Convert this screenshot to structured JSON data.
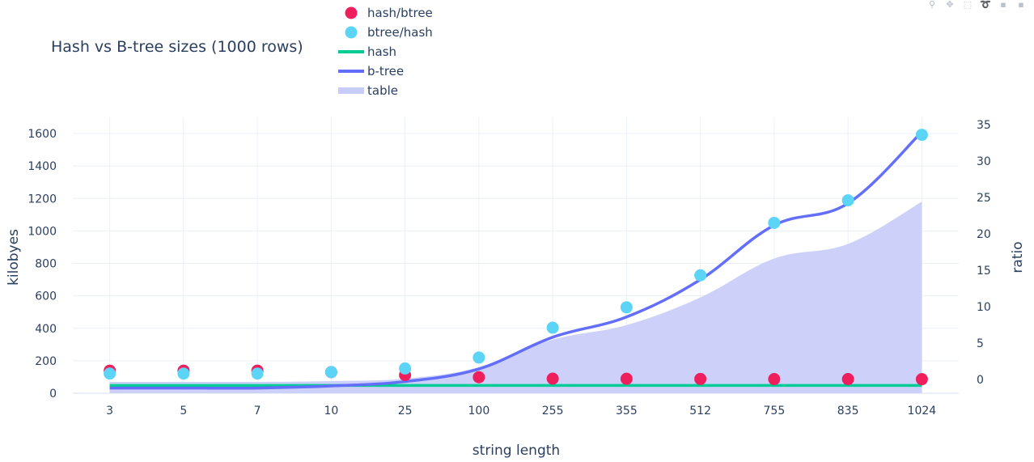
{
  "modebar": [
    {
      "name": "zoom-icon",
      "glyph": "⚲"
    },
    {
      "name": "pan-icon",
      "glyph": "✥"
    },
    {
      "name": "box-select-icon",
      "glyph": "⬚"
    },
    {
      "name": "lasso-select-icon",
      "glyph": "➰"
    },
    {
      "name": "zoom-in-icon",
      "glyph": "▪"
    },
    {
      "name": "zoom-out-icon",
      "glyph": "▪"
    }
  ],
  "chart_data": {
    "type": "line",
    "title": "Hash vs B-tree sizes (1000 rows)",
    "xlabel": "string length",
    "ylabel": "kilobyes",
    "y2label": "ratio",
    "categories": [
      "3",
      "5",
      "7",
      "10",
      "25",
      "100",
      "255",
      "355",
      "512",
      "755",
      "835",
      "1024"
    ],
    "ylim": [
      0,
      1700
    ],
    "y2lim": [
      -1.9,
      36
    ],
    "yticks": [
      0,
      200,
      400,
      600,
      800,
      1000,
      1200,
      1400,
      1600
    ],
    "y2ticks": [
      0,
      5,
      10,
      15,
      20,
      25,
      30,
      35
    ],
    "grid": true,
    "legend_position": "top-center",
    "series": [
      {
        "name": "table",
        "kind": "area",
        "axis": "y",
        "color": "#c8ccf9",
        "values": [
          70,
          70,
          70,
          75,
          90,
          160,
          330,
          420,
          590,
          830,
          920,
          1180
        ]
      },
      {
        "name": "hash",
        "kind": "line",
        "axis": "y",
        "color": "#00cc96",
        "values": [
          48,
          48,
          48,
          48,
          48,
          48,
          48,
          48,
          48,
          48,
          48,
          48
        ]
      },
      {
        "name": "b-tree",
        "kind": "line",
        "axis": "y",
        "color": "#636efa",
        "values": [
          32,
          32,
          32,
          45,
          72,
          150,
          345,
          470,
          700,
          1035,
          1170,
          1610
        ]
      },
      {
        "name": "hash/btree",
        "kind": "markers",
        "axis": "y2",
        "color": "#ef1f5e",
        "values": [
          1.2,
          1.2,
          1.2,
          1.0,
          0.6,
          0.3,
          0.1,
          0.08,
          0.06,
          0.04,
          0.04,
          0.03
        ]
      },
      {
        "name": "btree/hash",
        "kind": "markers",
        "axis": "y2",
        "color": "#5bd4f6",
        "values": [
          0.8,
          0.8,
          0.8,
          1.0,
          1.5,
          3.0,
          7.1,
          9.9,
          14.3,
          21.5,
          24.6,
          33.6
        ]
      }
    ],
    "legend_order": [
      "hash/btree",
      "btree/hash",
      "hash",
      "b-tree",
      "table"
    ]
  }
}
